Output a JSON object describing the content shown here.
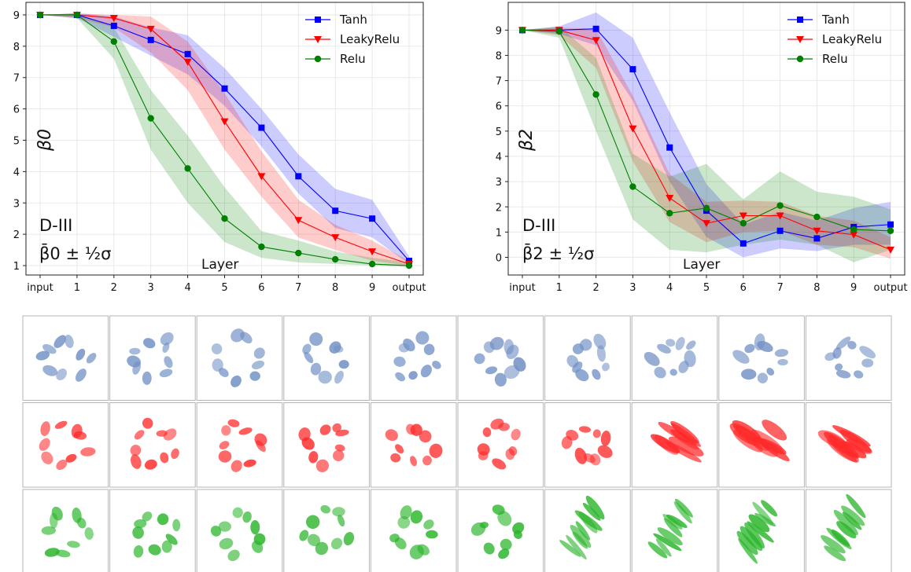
{
  "chart_data": [
    {
      "type": "line",
      "ylabel": "β0",
      "annotation_line1": "D-III",
      "annotation_line2": "β̄0 ± ½σ",
      "xlabel": "Layer",
      "categories": [
        "input",
        "1",
        "2",
        "3",
        "4",
        "5",
        "6",
        "7",
        "8",
        "9",
        "output"
      ],
      "ylim": [
        0.7,
        9.4
      ],
      "yticks": [
        1,
        2,
        3,
        4,
        5,
        6,
        7,
        8,
        9
      ],
      "grid": true,
      "legend_position": "top-right",
      "series": [
        {
          "name": "Tanh",
          "color": "#0000ff",
          "marker": "square",
          "values": [
            9,
            9,
            8.65,
            8.2,
            7.75,
            6.65,
            5.4,
            3.85,
            2.75,
            2.5,
            1.15
          ],
          "lower": [
            9,
            8.9,
            8.3,
            7.7,
            7.1,
            6.1,
            4.8,
            3.3,
            2.2,
            1.9,
            1.05
          ],
          "upper": [
            9,
            9.05,
            8.95,
            8.6,
            8.35,
            7.3,
            6.0,
            4.55,
            3.45,
            3.1,
            1.3
          ]
        },
        {
          "name": "LeakyRelu",
          "color": "#ff0000",
          "marker": "triangle-down",
          "values": [
            9,
            9,
            8.9,
            8.55,
            7.5,
            5.6,
            3.85,
            2.45,
            1.9,
            1.45,
            1.05
          ],
          "lower": [
            9,
            8.9,
            8.6,
            7.8,
            6.6,
            4.7,
            3.2,
            1.9,
            1.5,
            1.15,
            1.0
          ],
          "upper": [
            9,
            9.05,
            9.0,
            8.95,
            8.15,
            6.5,
            4.65,
            3.1,
            2.3,
            1.8,
            1.15
          ]
        },
        {
          "name": "Relu",
          "color": "#008000",
          "marker": "circle",
          "values": [
            9,
            9,
            8.15,
            5.7,
            4.1,
            2.5,
            1.6,
            1.4,
            1.2,
            1.05,
            1.0
          ],
          "lower": [
            9,
            8.9,
            7.6,
            4.7,
            3.0,
            1.75,
            1.25,
            1.1,
            1.05,
            1.0,
            0.95
          ],
          "upper": [
            9,
            9.05,
            8.6,
            6.6,
            5.15,
            3.5,
            2.1,
            1.8,
            1.45,
            1.25,
            1.1
          ]
        }
      ]
    },
    {
      "type": "line",
      "ylabel": "β2",
      "annotation_line1": "D-III",
      "annotation_line2": "β̄2 ± ½σ",
      "xlabel": "Layer",
      "categories": [
        "input",
        "1",
        "2",
        "3",
        "4",
        "5",
        "6",
        "7",
        "8",
        "9",
        "output"
      ],
      "ylim": [
        -0.7,
        10.1
      ],
      "yticks": [
        0,
        1,
        2,
        3,
        4,
        5,
        6,
        7,
        8,
        9
      ],
      "grid": true,
      "legend_position": "top-right",
      "series": [
        {
          "name": "Tanh",
          "color": "#0000ff",
          "marker": "square",
          "values": [
            9,
            9,
            9.05,
            7.45,
            4.35,
            1.85,
            0.55,
            1.05,
            0.75,
            1.2,
            1.3
          ],
          "lower": [
            9,
            8.85,
            8.4,
            6.2,
            3.0,
            0.8,
            0.0,
            0.35,
            0.25,
            0.5,
            0.5
          ],
          "upper": [
            9,
            9.15,
            9.7,
            8.7,
            5.75,
            2.9,
            1.3,
            1.8,
            1.45,
            1.95,
            2.2
          ]
        },
        {
          "name": "LeakyRelu",
          "color": "#ff0000",
          "marker": "triangle-down",
          "values": [
            9,
            9,
            8.6,
            5.1,
            2.35,
            1.35,
            1.65,
            1.65,
            1.05,
            0.9,
            0.3
          ],
          "lower": [
            9,
            8.8,
            7.5,
            3.8,
            1.4,
            0.6,
            1.0,
            1.05,
            0.5,
            0.4,
            -0.05
          ],
          "upper": [
            9,
            9.1,
            9.05,
            6.4,
            3.3,
            2.2,
            2.25,
            2.2,
            1.65,
            1.45,
            0.8
          ]
        },
        {
          "name": "Relu",
          "color": "#008000",
          "marker": "circle",
          "values": [
            9,
            8.95,
            6.45,
            2.8,
            1.75,
            1.95,
            1.35,
            2.05,
            1.6,
            1.1,
            1.05
          ],
          "lower": [
            9,
            8.7,
            5.0,
            1.5,
            0.3,
            0.2,
            0.5,
            0.7,
            0.5,
            -0.2,
            0.3
          ],
          "upper": [
            9,
            9.15,
            7.9,
            4.1,
            3.2,
            3.7,
            2.3,
            3.4,
            2.6,
            2.4,
            1.9
          ]
        }
      ]
    }
  ],
  "panel_grid": {
    "rows": [
      {
        "color": "#6f8fc4"
      },
      {
        "color": "#ff2a2a"
      },
      {
        "color": "#2ab52a"
      }
    ],
    "columns": 10
  }
}
